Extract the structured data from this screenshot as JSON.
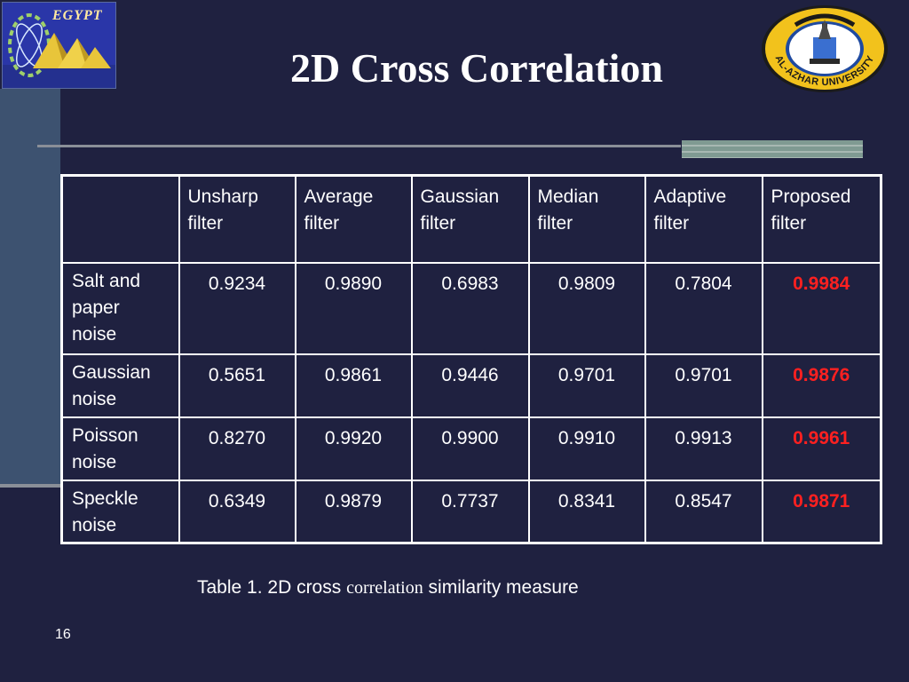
{
  "slide": {
    "title": "2D Cross Correlation",
    "number": "16",
    "logos": {
      "left_text": "EGYPT",
      "right_text": "AL-AZHAR UNIVERSITY"
    },
    "colors": {
      "background": "#1f2140",
      "highlight": "#ff2020"
    }
  },
  "table": {
    "columns": [
      "",
      "Unsharp\nfilter",
      "Average\nfilter",
      "Gaussian\nfilter",
      "Median\nfilter",
      "Adaptive\nfilter",
      "Proposed\nfilter"
    ],
    "rows": [
      {
        "label": "Salt and\npaper\nnoise",
        "values": [
          "0.9234",
          "0.9890",
          "0.6983",
          "0.9809",
          "0.7804",
          "0.9984"
        ]
      },
      {
        "label": "Gaussian\nnoise",
        "values": [
          "0.5651",
          "0.9861",
          "0.9446",
          "0.9701",
          "0.9701",
          "0.9876"
        ]
      },
      {
        "label": "Poisson\nnoise",
        "values": [
          "0.8270",
          "0.9920",
          "0.9900",
          "0.9910",
          "0.9913",
          "0.9961"
        ]
      },
      {
        "label": "Speckle\nnoise",
        "values": [
          "0.6349",
          "0.9879",
          "0.7737",
          "0.8341",
          "0.8547",
          "0.9871"
        ]
      }
    ]
  },
  "caption": {
    "prefix": "Table 1. 2D cross ",
    "middle": "correlation",
    "suffix": " similarity measure"
  }
}
